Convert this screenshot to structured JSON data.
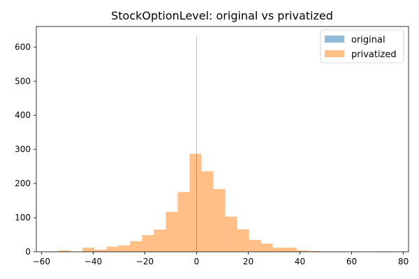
{
  "chart_data": {
    "type": "histogram",
    "title": "StockOptionLevel: original vs privatized",
    "xlabel": "",
    "ylabel": "",
    "xlim": [
      -62,
      82
    ],
    "ylim": [
      0,
      660
    ],
    "xticks": [
      -60,
      -40,
      -20,
      0,
      20,
      40,
      60,
      80
    ],
    "yticks": [
      0,
      100,
      200,
      300,
      400,
      500,
      600
    ],
    "grid": false,
    "legend_position": "top-right",
    "series": [
      {
        "name": "original",
        "color": "#1f77b4",
        "opacity": 0.5,
        "bins": [
          {
            "x0": -0.1,
            "x1": 0.1,
            "value": 630
          }
        ]
      },
      {
        "name": "privatized",
        "color": "#ff7f0e",
        "opacity": 0.5,
        "bins": [
          {
            "x0": -57.9,
            "x1": -53.3,
            "value": 1
          },
          {
            "x0": -53.3,
            "x1": -48.7,
            "value": 4
          },
          {
            "x0": -48.7,
            "x1": -44.1,
            "value": 0
          },
          {
            "x0": -44.1,
            "x1": -39.5,
            "value": 12
          },
          {
            "x0": -39.5,
            "x1": -34.9,
            "value": 6
          },
          {
            "x0": -34.9,
            "x1": -30.3,
            "value": 15
          },
          {
            "x0": -30.3,
            "x1": -25.7,
            "value": 19
          },
          {
            "x0": -25.7,
            "x1": -21.1,
            "value": 31
          },
          {
            "x0": -21.1,
            "x1": -16.5,
            "value": 49
          },
          {
            "x0": -16.5,
            "x1": -11.9,
            "value": 65
          },
          {
            "x0": -11.9,
            "x1": -7.3,
            "value": 117
          },
          {
            "x0": -7.3,
            "x1": -2.7,
            "value": 175
          },
          {
            "x0": -2.7,
            "x1": 1.9,
            "value": 287
          },
          {
            "x0": 1.9,
            "x1": 6.5,
            "value": 236
          },
          {
            "x0": 6.5,
            "x1": 11.1,
            "value": 184
          },
          {
            "x0": 11.1,
            "x1": 15.7,
            "value": 103
          },
          {
            "x0": 15.7,
            "x1": 20.3,
            "value": 66
          },
          {
            "x0": 20.3,
            "x1": 24.9,
            "value": 35
          },
          {
            "x0": 24.9,
            "x1": 29.5,
            "value": 24
          },
          {
            "x0": 29.5,
            "x1": 34.1,
            "value": 12
          },
          {
            "x0": 34.1,
            "x1": 38.7,
            "value": 12
          },
          {
            "x0": 38.7,
            "x1": 43.3,
            "value": 4
          },
          {
            "x0": 43.3,
            "x1": 47.9,
            "value": 2
          },
          {
            "x0": 47.9,
            "x1": 52.5,
            "value": 1
          },
          {
            "x0": 52.5,
            "x1": 57.1,
            "value": 1
          },
          {
            "x0": 57.1,
            "x1": 61.7,
            "value": 0
          },
          {
            "x0": 61.7,
            "x1": 66.3,
            "value": 0
          },
          {
            "x0": 66.3,
            "x1": 70.9,
            "value": 0
          },
          {
            "x0": 70.9,
            "x1": 75.5,
            "value": 1
          }
        ]
      }
    ]
  }
}
